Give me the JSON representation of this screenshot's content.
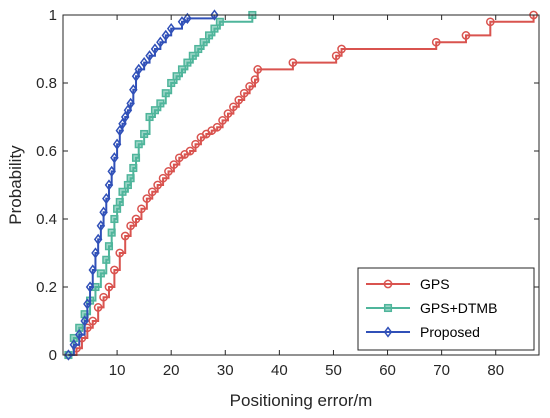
{
  "chart_data": {
    "type": "line",
    "title": "",
    "xlabel": "Positioning error/m",
    "ylabel": "Probability",
    "xlim": [
      0,
      88
    ],
    "ylim": [
      0,
      1
    ],
    "xticks": [
      10,
      20,
      30,
      40,
      50,
      60,
      70,
      80
    ],
    "yticks": [
      0,
      0.2,
      0.4,
      0.6,
      0.8,
      1
    ],
    "grid": false,
    "legend_position": "bottom-right",
    "series": [
      {
        "name": "GPS",
        "color": "#d9534f",
        "marker": "circle",
        "x": [
          1,
          2.5,
          3.5,
          4.5,
          5.5,
          6.5,
          7.5,
          8.5,
          9.5,
          10.5,
          11.5,
          12.5,
          13.5,
          14.5,
          15.5,
          16.5,
          17.5,
          18.5,
          19.5,
          20.5,
          21.5,
          22.5,
          23.5,
          24.5,
          25.5,
          26.5,
          27.5,
          28.5,
          29.5,
          30.5,
          31.5,
          32.5,
          33.5,
          34.5,
          35.5,
          36,
          42.5,
          50.5,
          51.5,
          69,
          74.5,
          79,
          87
        ],
        "y": [
          0,
          0.02,
          0.05,
          0.08,
          0.1,
          0.14,
          0.17,
          0.2,
          0.25,
          0.3,
          0.35,
          0.38,
          0.4,
          0.43,
          0.46,
          0.48,
          0.5,
          0.52,
          0.54,
          0.56,
          0.58,
          0.59,
          0.6,
          0.62,
          0.64,
          0.65,
          0.66,
          0.67,
          0.69,
          0.71,
          0.73,
          0.75,
          0.77,
          0.79,
          0.81,
          0.84,
          0.86,
          0.88,
          0.9,
          0.92,
          0.94,
          0.98,
          1
        ]
      },
      {
        "name": "GPS+DTMB",
        "color": "#4fb59b",
        "marker": "square",
        "x": [
          1,
          2,
          3,
          4,
          5,
          6,
          7,
          8,
          8.5,
          9,
          9.5,
          10,
          10.5,
          11,
          12,
          12.5,
          13,
          13.5,
          14,
          15,
          16,
          17,
          18,
          19,
          20,
          21,
          22,
          23,
          24,
          25,
          26,
          27,
          28,
          29,
          35
        ],
        "y": [
          0,
          0.05,
          0.08,
          0.12,
          0.16,
          0.2,
          0.24,
          0.28,
          0.32,
          0.36,
          0.4,
          0.43,
          0.45,
          0.48,
          0.5,
          0.52,
          0.55,
          0.58,
          0.62,
          0.65,
          0.7,
          0.72,
          0.74,
          0.77,
          0.8,
          0.82,
          0.84,
          0.86,
          0.88,
          0.9,
          0.92,
          0.94,
          0.96,
          0.98,
          1
        ]
      },
      {
        "name": "Proposed",
        "color": "#3050b8",
        "marker": "diamond",
        "x": [
          1,
          2,
          3,
          4,
          4.5,
          5,
          5.5,
          6,
          6.5,
          7,
          7.5,
          8,
          8.5,
          9,
          9.5,
          10,
          10.5,
          11,
          11.5,
          12,
          12.5,
          13,
          13.5,
          14,
          15,
          16,
          17,
          18,
          19,
          20,
          22,
          23,
          28
        ],
        "y": [
          0,
          0.03,
          0.06,
          0.1,
          0.15,
          0.2,
          0.25,
          0.3,
          0.34,
          0.38,
          0.42,
          0.46,
          0.5,
          0.54,
          0.58,
          0.62,
          0.66,
          0.68,
          0.7,
          0.72,
          0.74,
          0.78,
          0.82,
          0.84,
          0.86,
          0.88,
          0.9,
          0.92,
          0.94,
          0.96,
          0.98,
          0.99,
          1
        ]
      }
    ]
  }
}
